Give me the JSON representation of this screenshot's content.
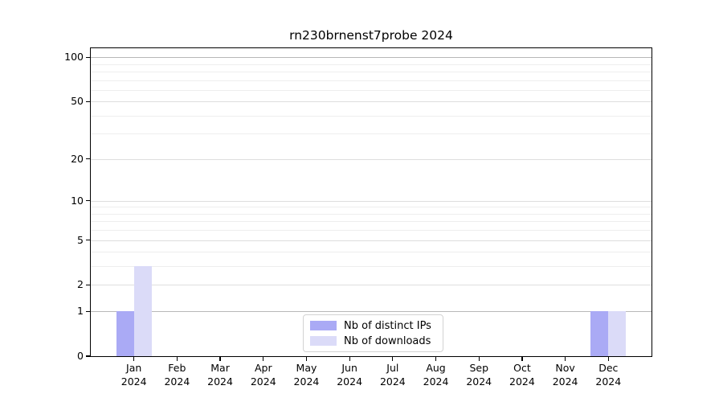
{
  "chart_data": {
    "type": "bar",
    "title": "rn230brnenst7probe 2024",
    "categories": [
      "Jan 2024",
      "Feb 2024",
      "Mar 2024",
      "Apr 2024",
      "May 2024",
      "Jun 2024",
      "Jul 2024",
      "Aug 2024",
      "Sep 2024",
      "Oct 2024",
      "Nov 2024",
      "Dec 2024"
    ],
    "series": [
      {
        "name": "Nb of distinct IPs",
        "color": "#aaaaf5",
        "values": [
          1,
          0,
          0,
          0,
          0,
          0,
          0,
          0,
          0,
          0,
          0,
          1
        ]
      },
      {
        "name": "Nb of downloads",
        "color": "#dbdbf8",
        "values": [
          3,
          0,
          0,
          0,
          0,
          0,
          0,
          0,
          0,
          0,
          0,
          1
        ]
      }
    ],
    "xlabel": "",
    "ylabel": "",
    "yscale": "log1p",
    "ylim": [
      0,
      115
    ],
    "yticks": [
      100,
      50,
      20,
      10,
      5,
      2,
      1,
      0
    ],
    "ytick_labels": [
      "100",
      "50",
      "20",
      "10",
      "5",
      "2",
      "1",
      "0"
    ],
    "minor_gridlines": [
      3,
      4,
      6,
      7,
      8,
      9,
      30,
      40,
      60,
      70,
      80,
      90
    ],
    "grid": true,
    "legend": {
      "position": "lower center",
      "entries": [
        "Nb of distinct IPs",
        "Nb of downloads"
      ]
    }
  },
  "colors": {
    "background": "#ffffff",
    "frame": "#000000",
    "grid_major_emphasized": "#b8b8b8",
    "grid_major": "#dedede",
    "grid_minor": "#eeeeee",
    "bar_distinct_ips": "#aaaaf5",
    "bar_downloads": "#dbdbf8"
  }
}
